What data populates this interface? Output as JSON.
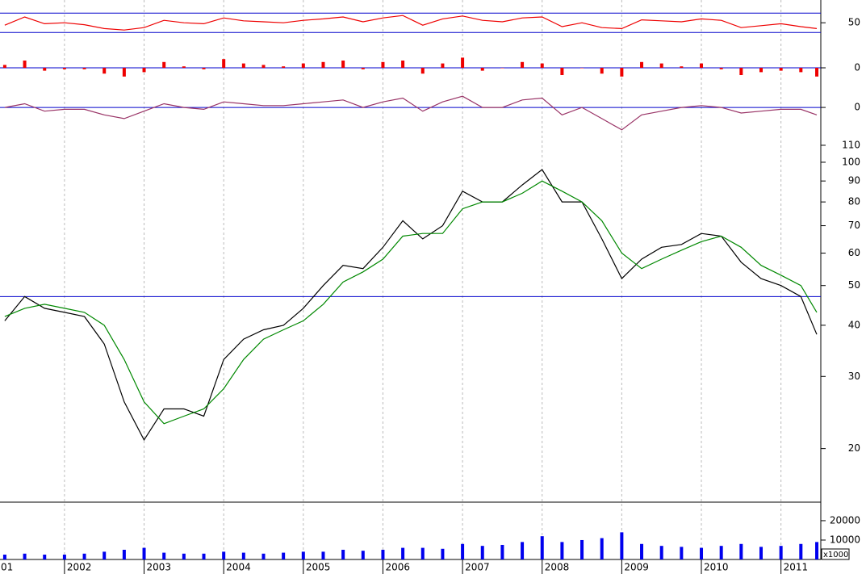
{
  "chart_data": [
    {
      "type": "line",
      "x": [
        2001.25,
        2001.5,
        2001.75,
        2002,
        2002.25,
        2002.5,
        2002.75,
        2003,
        2003.25,
        2003.5,
        2003.75,
        2004,
        2004.25,
        2004.5,
        2004.75,
        2005,
        2005.25,
        2005.5,
        2005.75,
        2006,
        2006.25,
        2006.5,
        2006.75,
        2007,
        2007.25,
        2007.5,
        2007.75,
        2008,
        2008.25,
        2008.5,
        2008.75,
        2009,
        2009.25,
        2009.5,
        2009.75,
        2010,
        2010.25,
        2010.5,
        2010.75,
        2011,
        2011.25,
        2011.45
      ],
      "xlim": [
        2001.19,
        2011.48
      ],
      "ylim": [
        -3,
        97
      ],
      "yticks": [
        50
      ],
      "reference_lines": [
        30,
        70
      ],
      "reference_color": "#0000cc",
      "series": [
        {
          "color": "#ee0000",
          "values": [
            45,
            62,
            48,
            50,
            46,
            38,
            35,
            40,
            55,
            50,
            48,
            60,
            54,
            52,
            50,
            55,
            58,
            62,
            52,
            60,
            65,
            45,
            58,
            64,
            55,
            52,
            60,
            62,
            42,
            50,
            40,
            38,
            56,
            54,
            52,
            58,
            55,
            40,
            44,
            48,
            42,
            38
          ]
        }
      ]
    },
    {
      "type": "bar",
      "x": [
        2001.25,
        2001.5,
        2001.75,
        2002,
        2002.25,
        2002.5,
        2002.75,
        2003,
        2003.25,
        2003.5,
        2003.75,
        2004,
        2004.25,
        2004.5,
        2004.75,
        2005,
        2005.25,
        2005.5,
        2005.75,
        2006,
        2006.25,
        2006.5,
        2006.75,
        2007,
        2007.25,
        2007.5,
        2007.75,
        2008,
        2008.25,
        2008.5,
        2008.75,
        2009,
        2009.25,
        2009.5,
        2009.75,
        2010,
        2010.25,
        2010.5,
        2010.75,
        2011,
        2011.25,
        2011.45
      ],
      "xlim": [
        2001.19,
        2011.48
      ],
      "ylim": [
        -10,
        10
      ],
      "yticks": [
        0
      ],
      "reference_lines": [
        0
      ],
      "reference_color": "#0000cc",
      "series": [
        {
          "color": "#ee0000",
          "values": [
            2,
            5,
            -2,
            -1,
            -1,
            -4,
            -6,
            -3,
            4,
            1,
            -1,
            6,
            3,
            2,
            1,
            3,
            4,
            5,
            -1,
            4,
            5,
            -4,
            3,
            7,
            -2,
            0,
            4,
            3,
            -5,
            0,
            -4,
            -6,
            4,
            3,
            1,
            3,
            -1,
            -5,
            -3,
            -2,
            -3,
            -6
          ]
        }
      ]
    },
    {
      "type": "line",
      "x": [
        2001.25,
        2001.5,
        2001.75,
        2002,
        2002.25,
        2002.5,
        2002.75,
        2003,
        2003.25,
        2003.5,
        2003.75,
        2004,
        2004.25,
        2004.5,
        2004.75,
        2005,
        2005.25,
        2005.5,
        2005.75,
        2006,
        2006.25,
        2006.5,
        2006.75,
        2007,
        2007.25,
        2007.5,
        2007.75,
        2008,
        2008.25,
        2008.5,
        2008.75,
        2009,
        2009.25,
        2009.5,
        2009.75,
        2010,
        2010.25,
        2010.5,
        2010.75,
        2011,
        2011.25,
        2011.45
      ],
      "xlim": [
        2001.19,
        2011.48
      ],
      "ylim": [
        -8,
        5
      ],
      "yticks": [
        0
      ],
      "reference_lines": [
        0
      ],
      "reference_color": "#0000cc",
      "series": [
        {
          "color": "#993366",
          "values": [
            0,
            1,
            -1,
            -0.5,
            -0.5,
            -2,
            -3,
            -1,
            1,
            0,
            -0.5,
            1.5,
            1,
            0.5,
            0.5,
            1,
            1.5,
            2,
            0,
            1.5,
            2.5,
            -1,
            1.5,
            3,
            0,
            0,
            2,
            2.5,
            -2,
            0,
            -3,
            -6,
            -2,
            -1,
            0,
            0.5,
            0,
            -1.5,
            -1,
            -0.5,
            -0.5,
            -2
          ]
        }
      ]
    },
    {
      "type": "line",
      "log_scale": true,
      "x": [
        2001.25,
        2001.5,
        2001.75,
        2002,
        2002.25,
        2002.5,
        2002.75,
        2003,
        2003.25,
        2003.5,
        2003.75,
        2004,
        2004.25,
        2004.5,
        2004.75,
        2005,
        2005.25,
        2005.5,
        2005.75,
        2006,
        2006.25,
        2006.5,
        2006.75,
        2007,
        2007.25,
        2007.5,
        2007.75,
        2008,
        2008.25,
        2008.5,
        2008.75,
        2009,
        2009.25,
        2009.5,
        2009.75,
        2010,
        2010.25,
        2010.5,
        2010.75,
        2011,
        2011.25,
        2011.45
      ],
      "xlim": [
        2001.19,
        2011.48
      ],
      "ylim": [
        14.8,
        112.5
      ],
      "yticks": [
        20,
        30,
        40,
        50,
        60,
        70,
        80,
        90,
        100,
        110
      ],
      "reference_lines": [
        47
      ],
      "reference_color": "#0000cc",
      "series": [
        {
          "color": "#000000",
          "values": [
            41,
            47,
            44,
            43,
            42,
            36,
            26,
            21,
            25,
            25,
            24,
            33,
            37,
            39,
            40,
            44,
            50,
            56,
            55,
            62,
            72,
            65,
            70,
            85,
            80,
            80,
            88,
            96,
            80,
            80,
            65,
            52,
            58,
            62,
            63,
            67,
            66,
            57,
            52,
            50,
            47,
            38
          ]
        },
        {
          "color": "#008800",
          "values": [
            42,
            44,
            45,
            44,
            43,
            40,
            33,
            26,
            23,
            24,
            25,
            28,
            33,
            37,
            39,
            41,
            45,
            51,
            54,
            58,
            66,
            67,
            67,
            77,
            80,
            80,
            84,
            90,
            85,
            80,
            72,
            60,
            55,
            58,
            61,
            64,
            66,
            62,
            56,
            53,
            50,
            43
          ]
        }
      ]
    },
    {
      "type": "bar",
      "x": [
        2001.25,
        2001.5,
        2001.75,
        2002,
        2002.25,
        2002.5,
        2002.75,
        2003,
        2003.25,
        2003.5,
        2003.75,
        2004,
        2004.25,
        2004.5,
        2004.75,
        2005,
        2005.25,
        2005.5,
        2005.75,
        2006,
        2006.25,
        2006.5,
        2006.75,
        2007,
        2007.25,
        2007.5,
        2007.75,
        2008,
        2008.25,
        2008.5,
        2008.75,
        2009,
        2009.25,
        2009.5,
        2009.75,
        2010,
        2010.25,
        2010.5,
        2010.75,
        2011,
        2011.25,
        2011.45
      ],
      "xlim": [
        2001.19,
        2011.48
      ],
      "ylim": [
        0,
        28300
      ],
      "yticks": [
        10000,
        20000
      ],
      "unit_label": "x1000",
      "xticks": [
        {
          "value": 2001,
          "label": "01"
        },
        2002,
        2003,
        2004,
        2005,
        2006,
        2007,
        2008,
        2009,
        2010,
        2011
      ],
      "series": [
        {
          "color": "#0000ee",
          "values": [
            2500,
            3000,
            2500,
            2500,
            3000,
            4000,
            5000,
            6000,
            3500,
            3000,
            3000,
            4000,
            3500,
            3000,
            3500,
            4000,
            4000,
            5000,
            4500,
            5000,
            6000,
            6000,
            5500,
            8000,
            7000,
            7500,
            9000,
            12000,
            9000,
            10000,
            11000,
            14000,
            8000,
            7000,
            6500,
            6000,
            7000,
            8000,
            6500,
            7000,
            8000,
            9000
          ]
        }
      ]
    }
  ]
}
